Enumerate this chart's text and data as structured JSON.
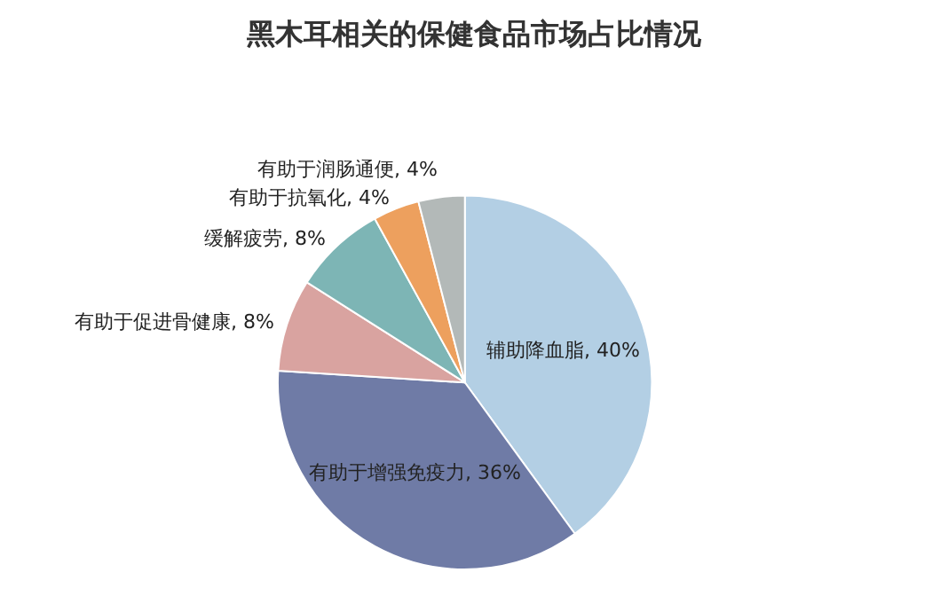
{
  "chart_data": {
    "type": "pie",
    "title": "黑木耳相关的保健食品市场占比情况",
    "categories": [
      "辅助降血脂",
      "有助于增强免疫力",
      "有助于促进骨健康",
      "缓解疲劳",
      "有助于抗氧化",
      "有助于润肠通便"
    ],
    "values": [
      40,
      36,
      8,
      8,
      4,
      4
    ],
    "value_labels": [
      "40%",
      "36%",
      "8%",
      "8%",
      "4%",
      "4%"
    ],
    "colors": [
      "#b3cfe4",
      "#6f7ba6",
      "#d9a3a0",
      "#7db5b5",
      "#eda05e",
      "#b3b9b8"
    ],
    "legend": false
  }
}
